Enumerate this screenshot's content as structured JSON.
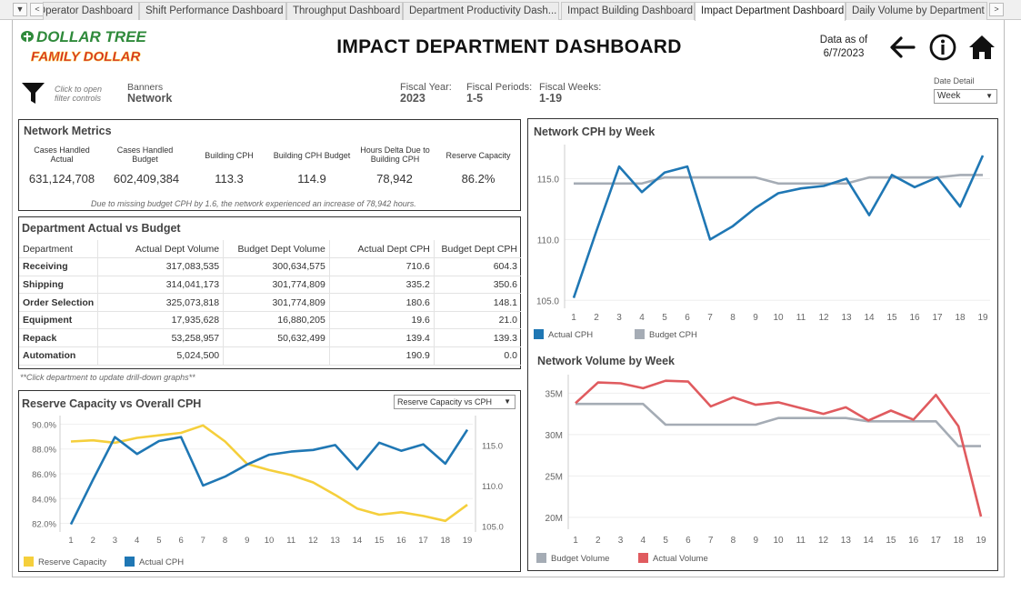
{
  "tabs": [
    "Operator Dashboard",
    "Shift Performance Dashboard",
    "Throughput Dashboard",
    "Department Productivity Dash...",
    "Impact Building Dashboard",
    "Impact Department Dashboard",
    "Daily Volume by Department"
  ],
  "active_tab": "Impact Department Dashboard",
  "tab_controls": {
    "menu": "▼",
    "prev": "<",
    "next": ">"
  },
  "brand": {
    "line1": "DOLLAR TREE",
    "line2": "FAMILY DOLLAR"
  },
  "header": {
    "title": "IMPACT DEPARTMENT DASHBOARD",
    "data_as_of_label": "Data as of",
    "data_as_of_date": "6/7/2023"
  },
  "nav_icons": [
    "back-arrow-icon",
    "info-icon",
    "home-icon"
  ],
  "filters": {
    "hint_line1": "Click to open",
    "hint_line2": "filter controls",
    "banners_label": "Banners",
    "banners_value": "Network",
    "fiscal_year_label": "Fiscal Year:",
    "fiscal_year_value": "2023",
    "fiscal_periods_label": "Fiscal Periods:",
    "fiscal_periods_value": "1-5",
    "fiscal_weeks_label": "Fiscal Weeks:",
    "fiscal_weeks_value": "1-19",
    "date_detail_label": "Date Detail",
    "date_detail_value": "Week"
  },
  "network_metrics": {
    "title": "Network Metrics",
    "items": [
      {
        "label": "Cases Handled Actual",
        "value": "631,124,708"
      },
      {
        "label": "Cases Handled Budget",
        "value": "602,409,384"
      },
      {
        "label": "Building CPH",
        "value": "113.3"
      },
      {
        "label": "Building CPH Budget",
        "value": "114.9"
      },
      {
        "label": "Hours Delta Due to Building CPH",
        "value": "78,942"
      },
      {
        "label": "Reserve Capacity",
        "value": "86.2%"
      }
    ],
    "note": "Due to missing budget CPH by 1.6, the network experienced an increase of 78,942 hours."
  },
  "dept_table": {
    "title": "Department Actual vs Budget",
    "columns": [
      "Department",
      "Actual Dept Volume",
      "Budget Dept Volume",
      "Actual Dept CPH",
      "Budget Dept CPH"
    ],
    "rows": [
      [
        "Receiving",
        "317,083,535",
        "300,634,575",
        "710.6",
        "604.3"
      ],
      [
        "Shipping",
        "314,041,173",
        "301,774,809",
        "335.2",
        "350.6"
      ],
      [
        "Order Selection",
        "325,073,818",
        "301,774,809",
        "180.6",
        "148.1"
      ],
      [
        "Equipment",
        "17,935,628",
        "16,880,205",
        "19.6",
        "21.0"
      ],
      [
        "Repack",
        "53,258,957",
        "50,632,499",
        "139.4",
        "139.3"
      ],
      [
        "Automation",
        "5,024,500",
        "",
        "190.9",
        "0.0"
      ]
    ],
    "note": "**Click department to update drill-down graphs**"
  },
  "reserve_panel": {
    "title": "Reserve Capacity vs Overall CPH",
    "selector": "Reserve Capacity vs CPH"
  },
  "cph_panel": {
    "title": "Network CPH by Week"
  },
  "volume_panel": {
    "title": "Network Volume by Week"
  },
  "colors": {
    "blue": "#1f77b4",
    "gray": "#a5acb5",
    "yellow": "#f5cf3c",
    "red": "#e05b5f",
    "brand_green": "#2f8a3b",
    "brand_red": "#d3212a"
  },
  "chart_data": [
    {
      "id": "cph",
      "type": "line",
      "x": [
        1,
        2,
        3,
        4,
        5,
        6,
        7,
        8,
        9,
        10,
        11,
        12,
        13,
        14,
        15,
        16,
        17,
        18,
        19
      ],
      "series": [
        {
          "name": "Actual CPH",
          "color": "#1f77b4",
          "values": [
            105.2,
            110.7,
            116.0,
            113.9,
            115.5,
            116.0,
            110.0,
            111.1,
            112.6,
            113.8,
            114.2,
            114.4,
            115.0,
            112.0,
            115.3,
            114.3,
            115.1,
            112.7,
            116.9
          ]
        },
        {
          "name": "Budget CPH",
          "color": "#a5acb5",
          "values": [
            114.6,
            114.6,
            114.6,
            114.6,
            115.1,
            115.1,
            115.1,
            115.1,
            115.1,
            114.6,
            114.6,
            114.6,
            114.6,
            115.1,
            115.1,
            115.1,
            115.1,
            115.3,
            115.3
          ]
        }
      ],
      "ylim": [
        104.5,
        117.5
      ],
      "yticks": [
        105.0,
        110.0,
        115.0
      ],
      "ytick_labels": [
        "105.0",
        "110.0",
        "115.0"
      ],
      "xlabel": "",
      "ylabel": "",
      "title": "Network CPH by Week"
    },
    {
      "id": "volume",
      "type": "line",
      "x": [
        1,
        2,
        3,
        4,
        5,
        6,
        7,
        8,
        9,
        10,
        11,
        12,
        13,
        14,
        15,
        16,
        17,
        18,
        19
      ],
      "series": [
        {
          "name": "Budget Volume",
          "color": "#a5acb5",
          "values": [
            33.7,
            33.7,
            33.7,
            33.7,
            31.2,
            31.2,
            31.2,
            31.2,
            31.2,
            32.0,
            32.0,
            32.0,
            32.0,
            31.6,
            31.6,
            31.6,
            31.6,
            28.6,
            28.6
          ]
        },
        {
          "name": "Actual Volume",
          "color": "#e05b5f",
          "values": [
            33.8,
            36.3,
            36.2,
            35.6,
            36.5,
            36.4,
            33.4,
            34.5,
            33.6,
            33.9,
            33.2,
            32.5,
            33.3,
            31.7,
            32.9,
            31.8,
            34.8,
            31.0,
            20.1
          ]
        }
      ],
      "ylim": [
        19.0,
        36.8
      ],
      "yticks": [
        20,
        25,
        30,
        35
      ],
      "ytick_labels": [
        "20M",
        "25M",
        "30M",
        "35M"
      ],
      "title": "Network Volume by Week"
    },
    {
      "id": "reserve",
      "type": "line",
      "x": [
        1,
        2,
        3,
        4,
        5,
        6,
        7,
        8,
        9,
        10,
        11,
        12,
        13,
        14,
        15,
        16,
        17,
        18,
        19
      ],
      "series": [
        {
          "name": "Reserve Capacity",
          "color": "#f5cf3c",
          "axis": "left",
          "values": [
            88.6,
            88.7,
            88.5,
            88.9,
            89.1,
            89.3,
            89.9,
            88.6,
            86.8,
            86.3,
            85.9,
            85.3,
            84.3,
            83.2,
            82.7,
            82.9,
            82.6,
            82.2,
            83.5
          ]
        },
        {
          "name": "Actual CPH",
          "color": "#1f77b4",
          "axis": "right",
          "values": [
            105.2,
            110.7,
            116.0,
            113.9,
            115.5,
            116.0,
            110.0,
            111.1,
            112.6,
            113.8,
            114.2,
            114.4,
            115.0,
            112.0,
            115.3,
            114.3,
            115.1,
            112.7,
            116.9
          ]
        }
      ],
      "ylim_left": [
        81.6,
        90.4
      ],
      "yticks_left": [
        82,
        84,
        86,
        88,
        90
      ],
      "ytick_labels_left": [
        "82.0%",
        "84.0%",
        "86.0%",
        "88.0%",
        "90.0%"
      ],
      "ylim_right": [
        104.7,
        118.2
      ],
      "yticks_right": [
        105,
        110,
        115
      ],
      "ytick_labels_right": [
        "105.0",
        "110.0",
        "115.0"
      ],
      "title": "Reserve Capacity vs Overall CPH"
    }
  ]
}
